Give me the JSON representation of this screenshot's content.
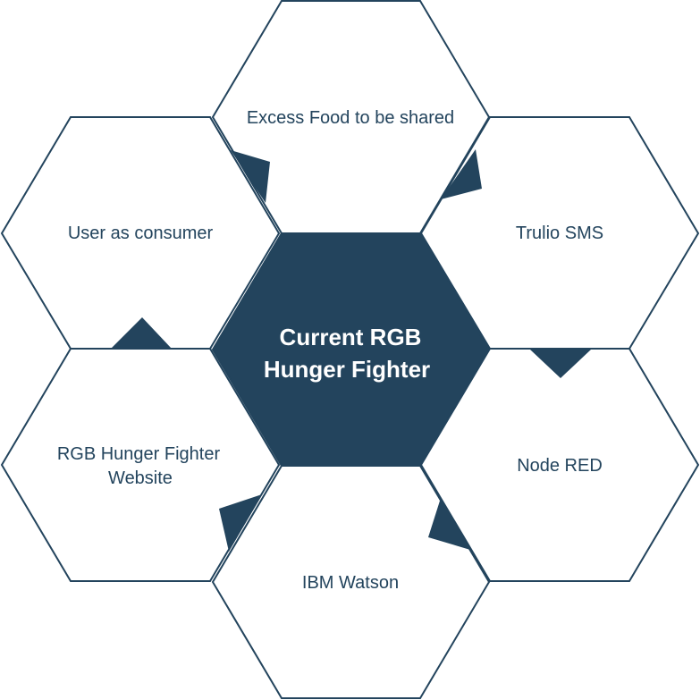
{
  "diagram": {
    "type": "hexagon-cluster",
    "colors": {
      "accent": "#23445d",
      "background": "#ffffff",
      "center_text": "#ffffff"
    },
    "center": {
      "line1": "Current RGB",
      "line2": "Hunger Fighter"
    },
    "top": {
      "label": "Excess Food to be shared"
    },
    "upper_right": {
      "label": "Trulio SMS"
    },
    "lower_right": {
      "label": "Node RED"
    },
    "bottom": {
      "label": "IBM Watson"
    },
    "lower_left": {
      "line1": "RGB Hunger Fighter",
      "line2": "Website"
    },
    "upper_left": {
      "label": "User as consumer"
    }
  }
}
